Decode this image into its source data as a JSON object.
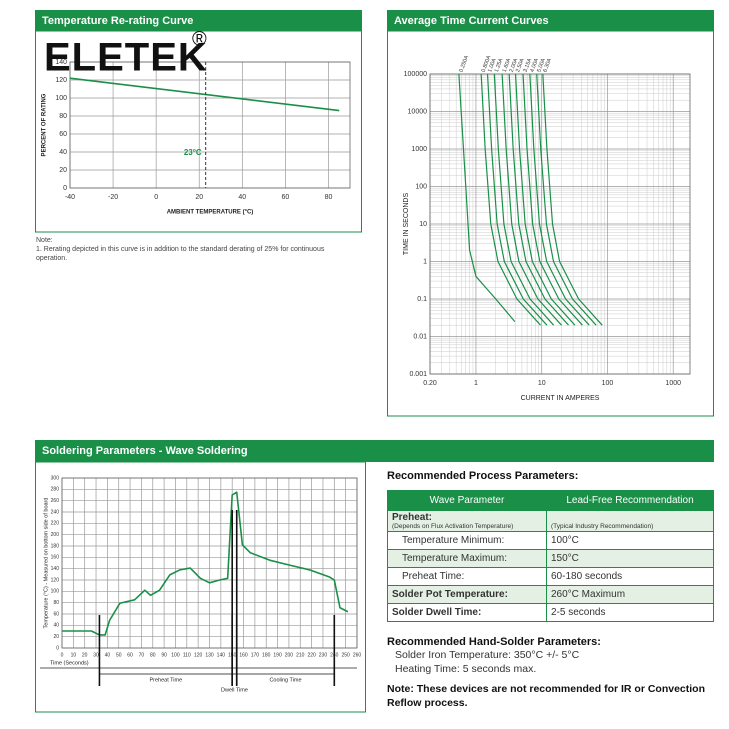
{
  "logo": {
    "name": "ELETEK",
    "mark": "®"
  },
  "rerating": {
    "header": "Temperature Re-rating Curve",
    "chart": {
      "type": "line",
      "xlabel": "AMBIENT TEMPERATURE (°C)",
      "ylabel": "PERCENT OF RATING",
      "xlim": [
        -40,
        90
      ],
      "ylim": [
        0,
        140
      ],
      "xticks": [
        -40,
        -20,
        0,
        20,
        40,
        60,
        80
      ],
      "yticks": [
        0,
        20,
        40,
        60,
        80,
        100,
        120,
        140
      ],
      "grid": true,
      "color": "#1a8f48",
      "x": [
        -40,
        85
      ],
      "values": [
        122,
        86
      ],
      "reference": {
        "x": 23,
        "label": "23°C"
      }
    },
    "note_title": "Note:",
    "note": "1. Rerating depicted in this curve is in addition to the standard derating of 25% for continuous operation."
  },
  "time_current": {
    "header": "Average Time Current Curves",
    "chart": {
      "type": "line",
      "log_x": true,
      "log_y": true,
      "xlabel": "CURRENT IN AMPERES",
      "ylabel": "TIME IN SECONDS",
      "xlim": [
        0.2,
        1800
      ],
      "ylim": [
        0.001,
        100000
      ],
      "xticks": [
        {
          "value": 0.2,
          "label": "0.20"
        },
        1,
        10,
        100,
        1000
      ],
      "yticks": [
        0.001,
        0.01,
        0.1,
        1,
        10,
        100,
        1000,
        10000,
        100000
      ],
      "grid": true,
      "minor_grid": true,
      "color": "#1a8f48",
      "series": [
        {
          "name": "0.250A",
          "x": [
            0.55,
            0.7,
            0.8,
            1,
            2,
            3.9
          ],
          "values": [
            100000,
            100,
            2,
            0.4,
            0.1,
            0.025
          ]
        },
        {
          "name": "0.800A",
          "x": [
            1.2,
            1.38,
            1.68,
            2.16,
            4.2,
            9.6
          ],
          "values": [
            100000,
            1000,
            10,
            1,
            0.1,
            0.02
          ]
        },
        {
          "name": "1.00A",
          "x": [
            1.5,
            1.73,
            2.1,
            2.7,
            5.25,
            12
          ],
          "values": [
            100000,
            1000,
            10,
            1,
            0.1,
            0.02
          ]
        },
        {
          "name": "1.25A",
          "x": [
            1.9,
            2.19,
            2.66,
            3.42,
            6.65,
            15.2
          ],
          "values": [
            100000,
            1000,
            10,
            1,
            0.1,
            0.02
          ]
        },
        {
          "name": "1.60A",
          "x": [
            2.5,
            2.88,
            3.5,
            4.5,
            8.75,
            20
          ],
          "values": [
            100000,
            1000,
            10,
            1,
            0.1,
            0.02
          ]
        },
        {
          "name": "2.00A",
          "x": [
            3.2,
            3.68,
            4.48,
            5.76,
            11.2,
            25.6
          ],
          "values": [
            100000,
            1000,
            10,
            1,
            0.1,
            0.02
          ]
        },
        {
          "name": "2.50A",
          "x": [
            4,
            4.6,
            5.6,
            7.2,
            14,
            32
          ],
          "values": [
            100000,
            1000,
            10,
            1,
            0.1,
            0.02
          ]
        },
        {
          "name": "3.15A",
          "x": [
            5.2,
            5.98,
            7.28,
            9.36,
            18.2,
            41.6
          ],
          "values": [
            100000,
            1000,
            10,
            1,
            0.1,
            0.02
          ]
        },
        {
          "name": "4.00A",
          "x": [
            6.6,
            7.59,
            9.24,
            11.9,
            23.1,
            52.8
          ],
          "values": [
            100000,
            1000,
            10,
            1,
            0.1,
            0.02
          ]
        },
        {
          "name": "5.00A",
          "x": [
            8.4,
            9.66,
            11.8,
            15.1,
            29.4,
            67.2
          ],
          "values": [
            100000,
            1000,
            10,
            1,
            0.1,
            0.02
          ]
        },
        {
          "name": "6.30A",
          "x": [
            10.4,
            12,
            14.6,
            18.7,
            36.4,
            83.2
          ],
          "values": [
            100000,
            1000,
            10,
            1,
            0.1,
            0.02
          ]
        }
      ]
    }
  },
  "soldering": {
    "header": "Soldering Parameters - Wave Soldering",
    "chart": {
      "type": "line",
      "xlabel": "Time (Seconds)",
      "ylabel": "Temperature (°C) - Measured on bottom side of board",
      "xlim": [
        0,
        260
      ],
      "ylim": [
        0,
        300
      ],
      "xticks": [
        0,
        10,
        20,
        30,
        40,
        50,
        60,
        70,
        80,
        90,
        100,
        110,
        120,
        130,
        140,
        150,
        160,
        170,
        180,
        190,
        200,
        210,
        220,
        230,
        240,
        250,
        260
      ],
      "yticks": [
        0,
        20,
        40,
        60,
        80,
        100,
        120,
        140,
        160,
        180,
        200,
        220,
        240,
        260,
        280,
        300
      ],
      "grid": true,
      "color": "#1a8f48",
      "x": [
        0,
        26,
        33,
        38,
        42,
        51,
        64,
        73,
        78,
        86,
        95,
        104,
        113,
        122,
        130,
        139,
        146,
        150,
        154,
        159,
        166,
        183,
        201,
        218,
        236,
        240,
        245,
        252
      ],
      "values": [
        30,
        30,
        23,
        23,
        49,
        79,
        85,
        102,
        93,
        102,
        129,
        138,
        141,
        123,
        115,
        120,
        123,
        270,
        275,
        182,
        168,
        155,
        146,
        138,
        125,
        120,
        71,
        64
      ],
      "phases": [
        {
          "label": "Preheat Time",
          "start": 33,
          "end": 150
        },
        {
          "label": "Dwell Time",
          "start": 150,
          "end": 154
        },
        {
          "label": "Cooling Time",
          "start": 154,
          "end": 240
        }
      ]
    }
  },
  "process": {
    "title": "Recommended Process Parameters:",
    "columns": [
      "Wave Parameter",
      "Lead-Free Recommendation"
    ],
    "rows": [
      {
        "cells": [
          "Preheat:",
          "(Typical Industry Recommendation)"
        ],
        "sub": "(Depends on Flux Activation Temperature)",
        "bold": true
      },
      {
        "cells": [
          "Temperature Minimum:",
          "100°C"
        ]
      },
      {
        "cells": [
          "Temperature Maximum:",
          "150°C"
        ]
      },
      {
        "cells": [
          "Preheat Time:",
          "60-180 seconds"
        ]
      },
      {
        "cells": [
          "Solder Pot Temperature:",
          "260°C Maximum"
        ],
        "bold": true
      },
      {
        "cells": [
          "Solder Dwell Time:",
          "2-5 seconds"
        ],
        "bold": true
      }
    ]
  },
  "hand_solder": {
    "title": "Recommended Hand-Solder Parameters:",
    "lines": [
      "Solder Iron Temperature: 350°C +/- 5°C",
      "Heating Time: 5 seconds max."
    ],
    "note": "Note: These devices are not recommended for IR or Convection Reflow process."
  }
}
